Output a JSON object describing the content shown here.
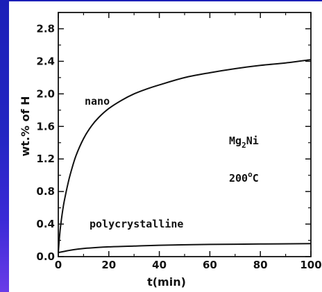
{
  "chart_data": {
    "type": "line",
    "xlabel": "t(min)",
    "ylabel": "wt.% of H",
    "xlim": [
      0,
      100
    ],
    "ylim": [
      0,
      3.0
    ],
    "x_ticks": [
      0,
      20,
      40,
      60,
      80,
      100
    ],
    "x_tick_labels": [
      "0",
      "20",
      "40",
      "60",
      "80",
      "100"
    ],
    "y_ticks": [
      0.0,
      0.4,
      0.8,
      1.2,
      1.6,
      2.0,
      2.4,
      2.8
    ],
    "y_tick_labels": [
      "0.0",
      "0.4",
      "0.8",
      "1.2",
      "1.6",
      "2.0",
      "2.4",
      "2.8"
    ],
    "grid": false,
    "series": [
      {
        "name": "nano",
        "x": [
          0,
          0.5,
          1,
          2,
          3,
          4,
          5,
          7,
          10,
          13,
          16,
          20,
          25,
          30,
          35,
          40,
          50,
          60,
          70,
          80,
          90,
          100
        ],
        "y": [
          0.05,
          0.25,
          0.4,
          0.62,
          0.78,
          0.92,
          1.04,
          1.24,
          1.45,
          1.6,
          1.71,
          1.82,
          1.92,
          2.0,
          2.06,
          2.11,
          2.2,
          2.26,
          2.31,
          2.35,
          2.38,
          2.42
        ]
      },
      {
        "name": "polycrystalline",
        "x": [
          0,
          5,
          10,
          20,
          30,
          40,
          60,
          80,
          100
        ],
        "y": [
          0.05,
          0.08,
          0.1,
          0.12,
          0.13,
          0.14,
          0.15,
          0.155,
          0.16
        ]
      }
    ],
    "annotations": [
      {
        "text": "Mg",
        "subscript": "2",
        "text_after": "Ni"
      },
      {
        "text": "200",
        "superscript": "o",
        "text_after": "C"
      }
    ]
  }
}
